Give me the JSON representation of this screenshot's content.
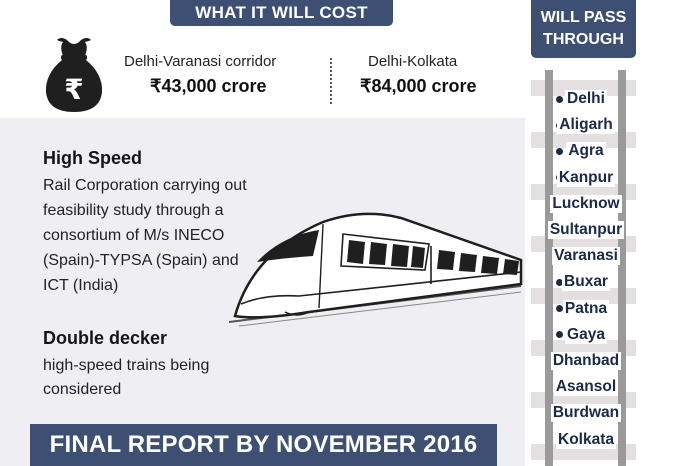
{
  "cost": {
    "heading": "WHAT IT WILL COST",
    "corridors": [
      {
        "label": "Delhi-Varanasi corridor",
        "amount": "₹43,000 crore"
      },
      {
        "label": "Delhi-Kolkata",
        "amount": "₹84,000 crore"
      }
    ]
  },
  "info": {
    "high_speed_title": "High Speed",
    "high_speed_text": "Rail Corporation carrying out feasibility study through a consortium of M/s INECO (Spain)-TYPSA (Spain) and ICT (India)",
    "double_decker_title": "Double decker",
    "double_decker_text": "high-speed trains being considered"
  },
  "footer": {
    "banner": "FINAL REPORT BY NOVEMBER 2016"
  },
  "route": {
    "heading": "WILL PASS THROUGH",
    "stations": [
      "Delhi",
      "Aligarh",
      "Agra",
      "Kanpur",
      "Lucknow",
      "Sultanpur",
      "Varanasi",
      "Buxar",
      "Patna",
      "Gaya",
      "Dhanbad",
      "Asansol",
      "Burdwan",
      "Kolkata"
    ]
  },
  "icons": {
    "money_bag": "money-bag-icon",
    "train": "train-illustration",
    "station_marker": "station-dot-icon"
  },
  "colors": {
    "banner": "#3d4f72",
    "station_text": "#1a2a4a",
    "rail": "#9a9a9a",
    "tie": "#e4dfe0"
  }
}
